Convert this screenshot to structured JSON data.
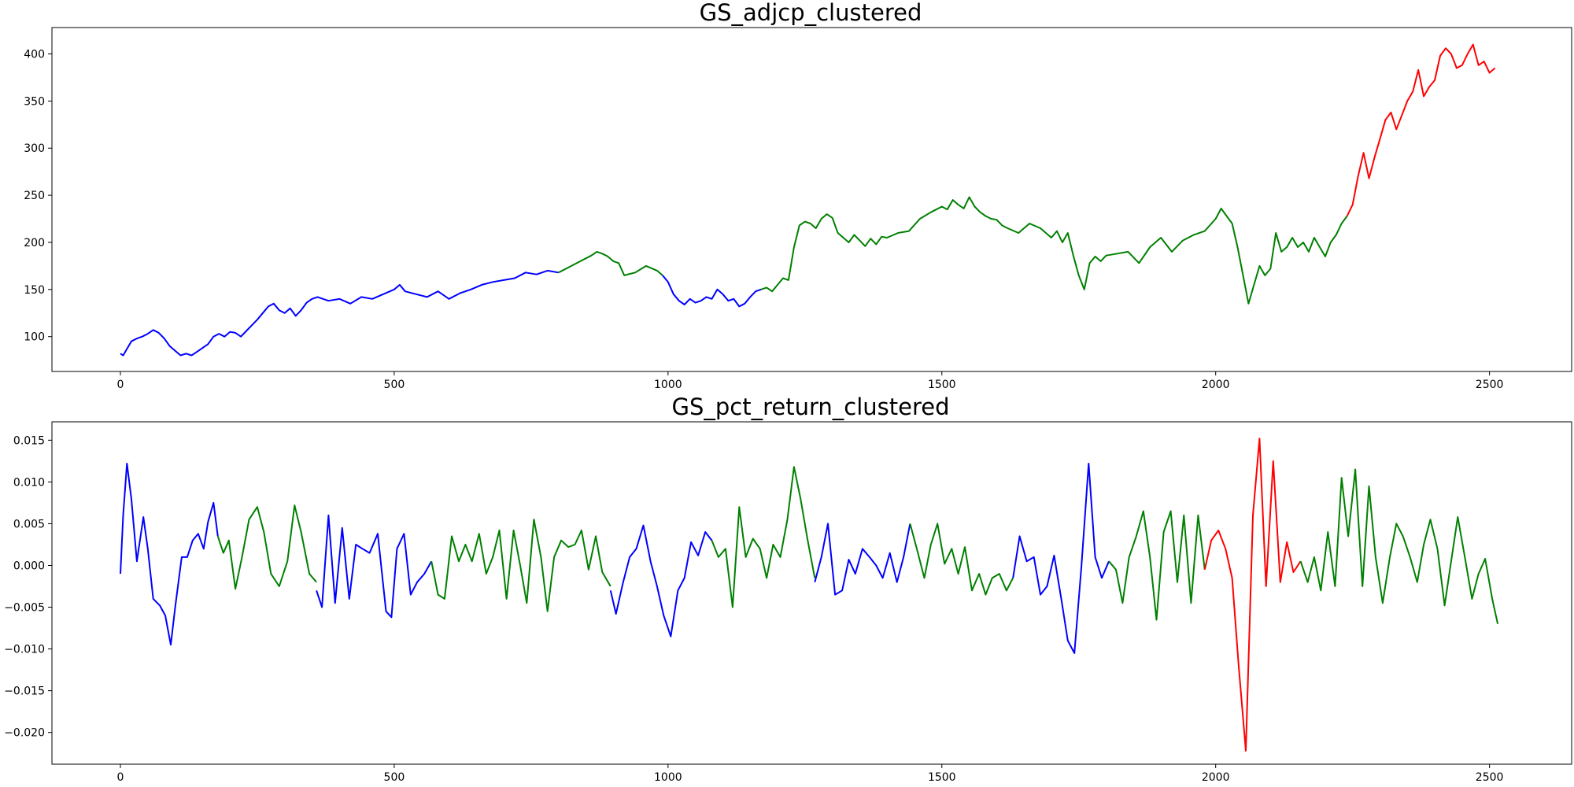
{
  "chart_data": [
    {
      "type": "line",
      "title": "GS_adjcp_clustered",
      "xlabel": "",
      "ylabel": "",
      "xlim": [
        -125,
        2650
      ],
      "ylim": [
        63,
        428
      ],
      "xticks": [
        0,
        500,
        1000,
        1500,
        2000,
        2500
      ],
      "yticks": [
        100,
        150,
        200,
        250,
        300,
        350,
        400
      ],
      "grid": false,
      "legend": "none",
      "cluster_colors": {
        "0": "#0000ff",
        "1": "#008000",
        "2": "#ff0000"
      },
      "segments": [
        {
          "cluster": 0,
          "x": [
            0,
            5,
            10,
            20,
            30,
            40,
            50,
            60,
            70,
            80,
            90,
            100,
            110,
            120,
            130,
            140,
            150,
            160,
            170,
            180,
            190,
            200,
            210,
            220,
            230,
            240,
            250,
            260,
            270,
            280,
            290,
            300,
            310,
            320,
            330,
            340,
            350,
            360,
            380,
            400,
            420,
            440,
            460,
            480,
            500,
            510,
            520,
            540,
            560,
            580,
            600,
            620,
            640,
            660,
            680,
            700,
            720,
            740,
            760,
            780,
            800
          ],
          "y": [
            82,
            80,
            85,
            95,
            98,
            100,
            103,
            107,
            104,
            98,
            90,
            85,
            80,
            82,
            80,
            84,
            88,
            92,
            100,
            103,
            100,
            105,
            104,
            100,
            106,
            112,
            118,
            125,
            132,
            135,
            128,
            125,
            130,
            122,
            128,
            136,
            140,
            142,
            138,
            140,
            135,
            142,
            140,
            145,
            150,
            155,
            148,
            145,
            142,
            148,
            140,
            146,
            150,
            155,
            158,
            160,
            162,
            168,
            166,
            170,
            168
          ]
        },
        {
          "cluster": 1,
          "x": [
            800,
            820,
            840,
            860,
            870,
            880,
            890,
            900,
            910,
            920,
            940,
            960,
            980,
            990
          ],
          "y": [
            168,
            174,
            180,
            186,
            190,
            188,
            185,
            180,
            178,
            165,
            168,
            175,
            170,
            165
          ]
        },
        {
          "cluster": 0,
          "x": [
            990,
            1000,
            1010,
            1020,
            1030,
            1040,
            1050,
            1060,
            1070,
            1080,
            1090,
            1100,
            1110,
            1120,
            1130,
            1140,
            1150,
            1160,
            1170
          ],
          "y": [
            165,
            158,
            145,
            138,
            134,
            140,
            136,
            138,
            142,
            140,
            150,
            145,
            138,
            140,
            132,
            135,
            142,
            148,
            150
          ]
        },
        {
          "cluster": 1,
          "x": [
            1170,
            1180,
            1190,
            1200,
            1210,
            1220,
            1230,
            1240,
            1250,
            1260,
            1270,
            1280,
            1290,
            1300,
            1310,
            1320,
            1330,
            1340,
            1350,
            1360,
            1370,
            1380,
            1390,
            1400,
            1420,
            1440,
            1460,
            1480,
            1500,
            1510,
            1520,
            1530,
            1540,
            1550,
            1560,
            1570,
            1580,
            1590,
            1600,
            1610,
            1620,
            1640,
            1660,
            1680,
            1700,
            1710,
            1720,
            1730,
            1740,
            1750,
            1760,
            1770,
            1780,
            1790,
            1800,
            1820,
            1840,
            1860,
            1880,
            1900,
            1920,
            1940,
            1960,
            1980,
            2000,
            2010,
            2020,
            2030,
            2040,
            2050,
            2060,
            2070,
            2080,
            2090,
            2100,
            2110,
            2120,
            2130,
            2140,
            2150,
            2160,
            2170,
            2180,
            2190,
            2200,
            2210,
            2220,
            2230,
            2240
          ],
          "y": [
            150,
            152,
            148,
            155,
            162,
            160,
            195,
            218,
            222,
            220,
            215,
            225,
            230,
            226,
            210,
            205,
            200,
            208,
            202,
            196,
            204,
            198,
            206,
            205,
            210,
            212,
            225,
            232,
            238,
            235,
            245,
            240,
            236,
            248,
            238,
            232,
            228,
            225,
            224,
            218,
            215,
            210,
            220,
            215,
            205,
            212,
            200,
            210,
            186,
            165,
            150,
            178,
            185,
            180,
            186,
            188,
            190,
            178,
            195,
            205,
            190,
            202,
            208,
            212,
            225,
            236,
            228,
            220,
            195,
            165,
            135,
            155,
            175,
            165,
            172,
            210,
            190,
            195,
            205,
            195,
            200,
            190,
            205,
            195,
            185,
            200,
            208,
            220,
            228
          ]
        },
        {
          "cluster": 2,
          "x": [
            2240,
            2250,
            2260,
            2270,
            2280,
            2290,
            2300,
            2310,
            2320,
            2330,
            2340,
            2350,
            2360,
            2370,
            2380,
            2390,
            2400,
            2410,
            2420,
            2430,
            2440,
            2450,
            2460,
            2470,
            2480,
            2490,
            2500,
            2510
          ],
          "y": [
            228,
            240,
            270,
            295,
            268,
            290,
            310,
            330,
            338,
            320,
            335,
            350,
            360,
            383,
            355,
            365,
            372,
            398,
            406,
            400,
            385,
            388,
            400,
            410,
            388,
            392,
            380,
            385
          ]
        }
      ]
    },
    {
      "type": "line",
      "title": "GS_pct_return_clustered",
      "xlabel": "",
      "ylabel": "",
      "xlim": [
        -125,
        2650
      ],
      "ylim": [
        -0.0238,
        0.0172
      ],
      "xticks": [
        0,
        500,
        1000,
        1500,
        2000,
        2500
      ],
      "yticks": [
        0.015,
        0.01,
        0.005,
        0.0,
        -0.005,
        -0.01,
        -0.015,
        -0.02
      ],
      "ytick_labels": [
        "0.015",
        "0.010",
        "0.005",
        "0.000",
        "−0.005",
        "−0.010",
        "−0.015",
        "−0.020"
      ],
      "grid": false,
      "legend": "none",
      "cluster_colors": {
        "0": "#0000ff",
        "1": "#008000",
        "2": "#ff0000"
      },
      "segments": [
        {
          "cluster": 0,
          "x": [
            0,
            5,
            12,
            20,
            30,
            42,
            50,
            60,
            72,
            82,
            92,
            100,
            112,
            122,
            132,
            142,
            152,
            160,
            170,
            178
          ],
          "y": [
            -0.001,
            0.006,
            0.0122,
            0.008,
            0.0005,
            0.0058,
            0.002,
            -0.004,
            -0.0048,
            -0.006,
            -0.0095,
            -0.005,
            0.001,
            0.001,
            0.003,
            0.0038,
            0.002,
            0.0052,
            0.0075,
            0.0035
          ]
        },
        {
          "cluster": 1,
          "x": [
            178,
            188,
            198,
            210,
            222,
            235,
            250,
            262,
            275,
            290,
            305,
            318,
            330,
            345,
            358
          ],
          "y": [
            0.0035,
            0.0015,
            0.003,
            -0.0028,
            0.001,
            0.0055,
            0.007,
            0.004,
            -0.001,
            -0.0025,
            0.0005,
            0.0072,
            0.004,
            -0.001,
            -0.002
          ]
        },
        {
          "cluster": 0,
          "x": [
            358,
            368,
            380,
            392,
            405,
            418,
            430,
            442,
            455,
            470,
            485,
            495,
            505,
            518,
            530,
            542,
            555,
            568
          ],
          "y": [
            -0.003,
            -0.005,
            0.006,
            -0.0045,
            0.0045,
            -0.004,
            0.0025,
            0.002,
            0.0015,
            0.0038,
            -0.0055,
            -0.0062,
            0.002,
            0.0038,
            -0.0035,
            -0.002,
            -0.001,
            0.0005
          ]
        },
        {
          "cluster": 1,
          "x": [
            568,
            580,
            592,
            605,
            618,
            630,
            642,
            655,
            668,
            680,
            692,
            705,
            718,
            730,
            742,
            755,
            768,
            780,
            792,
            805,
            818,
            830,
            842,
            855,
            868,
            880,
            895
          ],
          "y": [
            0.0005,
            -0.0035,
            -0.004,
            0.0035,
            0.0005,
            0.0025,
            0.0005,
            0.0038,
            -0.001,
            0.001,
            0.0042,
            -0.004,
            0.0042,
            0.0,
            -0.0045,
            0.0055,
            0.001,
            -0.0055,
            0.001,
            0.003,
            0.0022,
            0.0025,
            0.0042,
            -0.0005,
            0.0035,
            -0.0008,
            -0.0025
          ]
        },
        {
          "cluster": 0,
          "x": [
            895,
            905,
            918,
            930,
            942,
            955,
            968,
            980,
            992,
            1005,
            1018,
            1030,
            1042,
            1055,
            1068,
            1080
          ],
          "y": [
            -0.003,
            -0.0058,
            -0.002,
            0.001,
            0.002,
            0.0048,
            0.0005,
            -0.0025,
            -0.006,
            -0.0085,
            -0.003,
            -0.0015,
            0.0028,
            0.0012,
            0.004,
            0.003
          ]
        },
        {
          "cluster": 1,
          "x": [
            1080,
            1092,
            1105,
            1118,
            1130,
            1142,
            1155,
            1168,
            1180,
            1192,
            1205,
            1218,
            1230,
            1242,
            1255,
            1268
          ],
          "y": [
            0.003,
            0.001,
            0.002,
            -0.005,
            0.007,
            0.001,
            0.0032,
            0.002,
            -0.0015,
            0.0025,
            0.001,
            0.0055,
            0.0118,
            0.008,
            0.003,
            -0.0015
          ]
        },
        {
          "cluster": 0,
          "x": [
            1268,
            1280,
            1292,
            1305,
            1318,
            1330,
            1342,
            1355,
            1368,
            1380,
            1392,
            1405,
            1418,
            1430,
            1442
          ],
          "y": [
            -0.002,
            0.001,
            0.005,
            -0.0035,
            -0.003,
            0.0007,
            -0.001,
            0.002,
            0.001,
            0.0,
            -0.0015,
            0.0015,
            -0.002,
            0.001,
            0.005
          ]
        },
        {
          "cluster": 1,
          "x": [
            1442,
            1455,
            1468,
            1480,
            1492,
            1505,
            1518,
            1530,
            1542,
            1555,
            1568,
            1580,
            1592,
            1605,
            1618,
            1630
          ],
          "y": [
            0.005,
            0.0018,
            -0.0015,
            0.0025,
            0.005,
            0.0002,
            0.002,
            -0.001,
            0.0022,
            -0.003,
            -0.001,
            -0.0035,
            -0.0015,
            -0.001,
            -0.003,
            -0.0015
          ]
        },
        {
          "cluster": 0,
          "x": [
            1630,
            1642,
            1655,
            1668,
            1680,
            1692,
            1705,
            1718,
            1730,
            1742,
            1755,
            1768,
            1780,
            1792,
            1805
          ],
          "y": [
            -0.0015,
            0.0035,
            0.0005,
            0.001,
            -0.0035,
            -0.0025,
            0.0012,
            -0.004,
            -0.009,
            -0.0105,
            0.0,
            0.0122,
            0.001,
            -0.0015,
            0.0005
          ]
        },
        {
          "cluster": 1,
          "x": [
            1805,
            1818,
            1830,
            1842,
            1855,
            1868,
            1880,
            1892,
            1905,
            1918,
            1930,
            1942,
            1955,
            1968,
            1980
          ],
          "y": [
            0.0005,
            -0.0005,
            -0.0045,
            0.001,
            0.0035,
            0.0065,
            0.001,
            -0.0065,
            0.004,
            0.0065,
            -0.002,
            0.006,
            -0.0045,
            0.006,
            -0.0005
          ]
        },
        {
          "cluster": 2,
          "x": [
            1980,
            1992,
            2005,
            2018,
            2030,
            2042,
            2055,
            2068,
            2080,
            2092,
            2105,
            2118,
            2130,
            2142,
            2155
          ],
          "y": [
            -0.0005,
            0.003,
            0.0042,
            0.002,
            -0.0015,
            -0.012,
            -0.0222,
            0.006,
            0.0152,
            -0.0025,
            0.0125,
            -0.002,
            0.0028,
            -0.0008,
            0.0005
          ]
        },
        {
          "cluster": 1,
          "x": [
            2155,
            2168,
            2180,
            2192,
            2205,
            2218,
            2230,
            2242,
            2255,
            2268,
            2280,
            2292,
            2305,
            2318,
            2330,
            2342,
            2355,
            2368,
            2380,
            2392,
            2405,
            2418,
            2430,
            2442,
            2455,
            2468,
            2480,
            2492,
            2505,
            2515
          ],
          "y": [
            0.0005,
            -0.002,
            0.001,
            -0.003,
            0.004,
            -0.0025,
            0.0105,
            0.0035,
            0.0115,
            -0.0025,
            0.0095,
            0.001,
            -0.0045,
            0.001,
            0.005,
            0.0035,
            0.001,
            -0.002,
            0.0025,
            0.0055,
            0.002,
            -0.0048,
            0.0005,
            0.0058,
            0.001,
            -0.004,
            -0.001,
            0.0008,
            -0.004,
            -0.007
          ]
        }
      ]
    }
  ]
}
